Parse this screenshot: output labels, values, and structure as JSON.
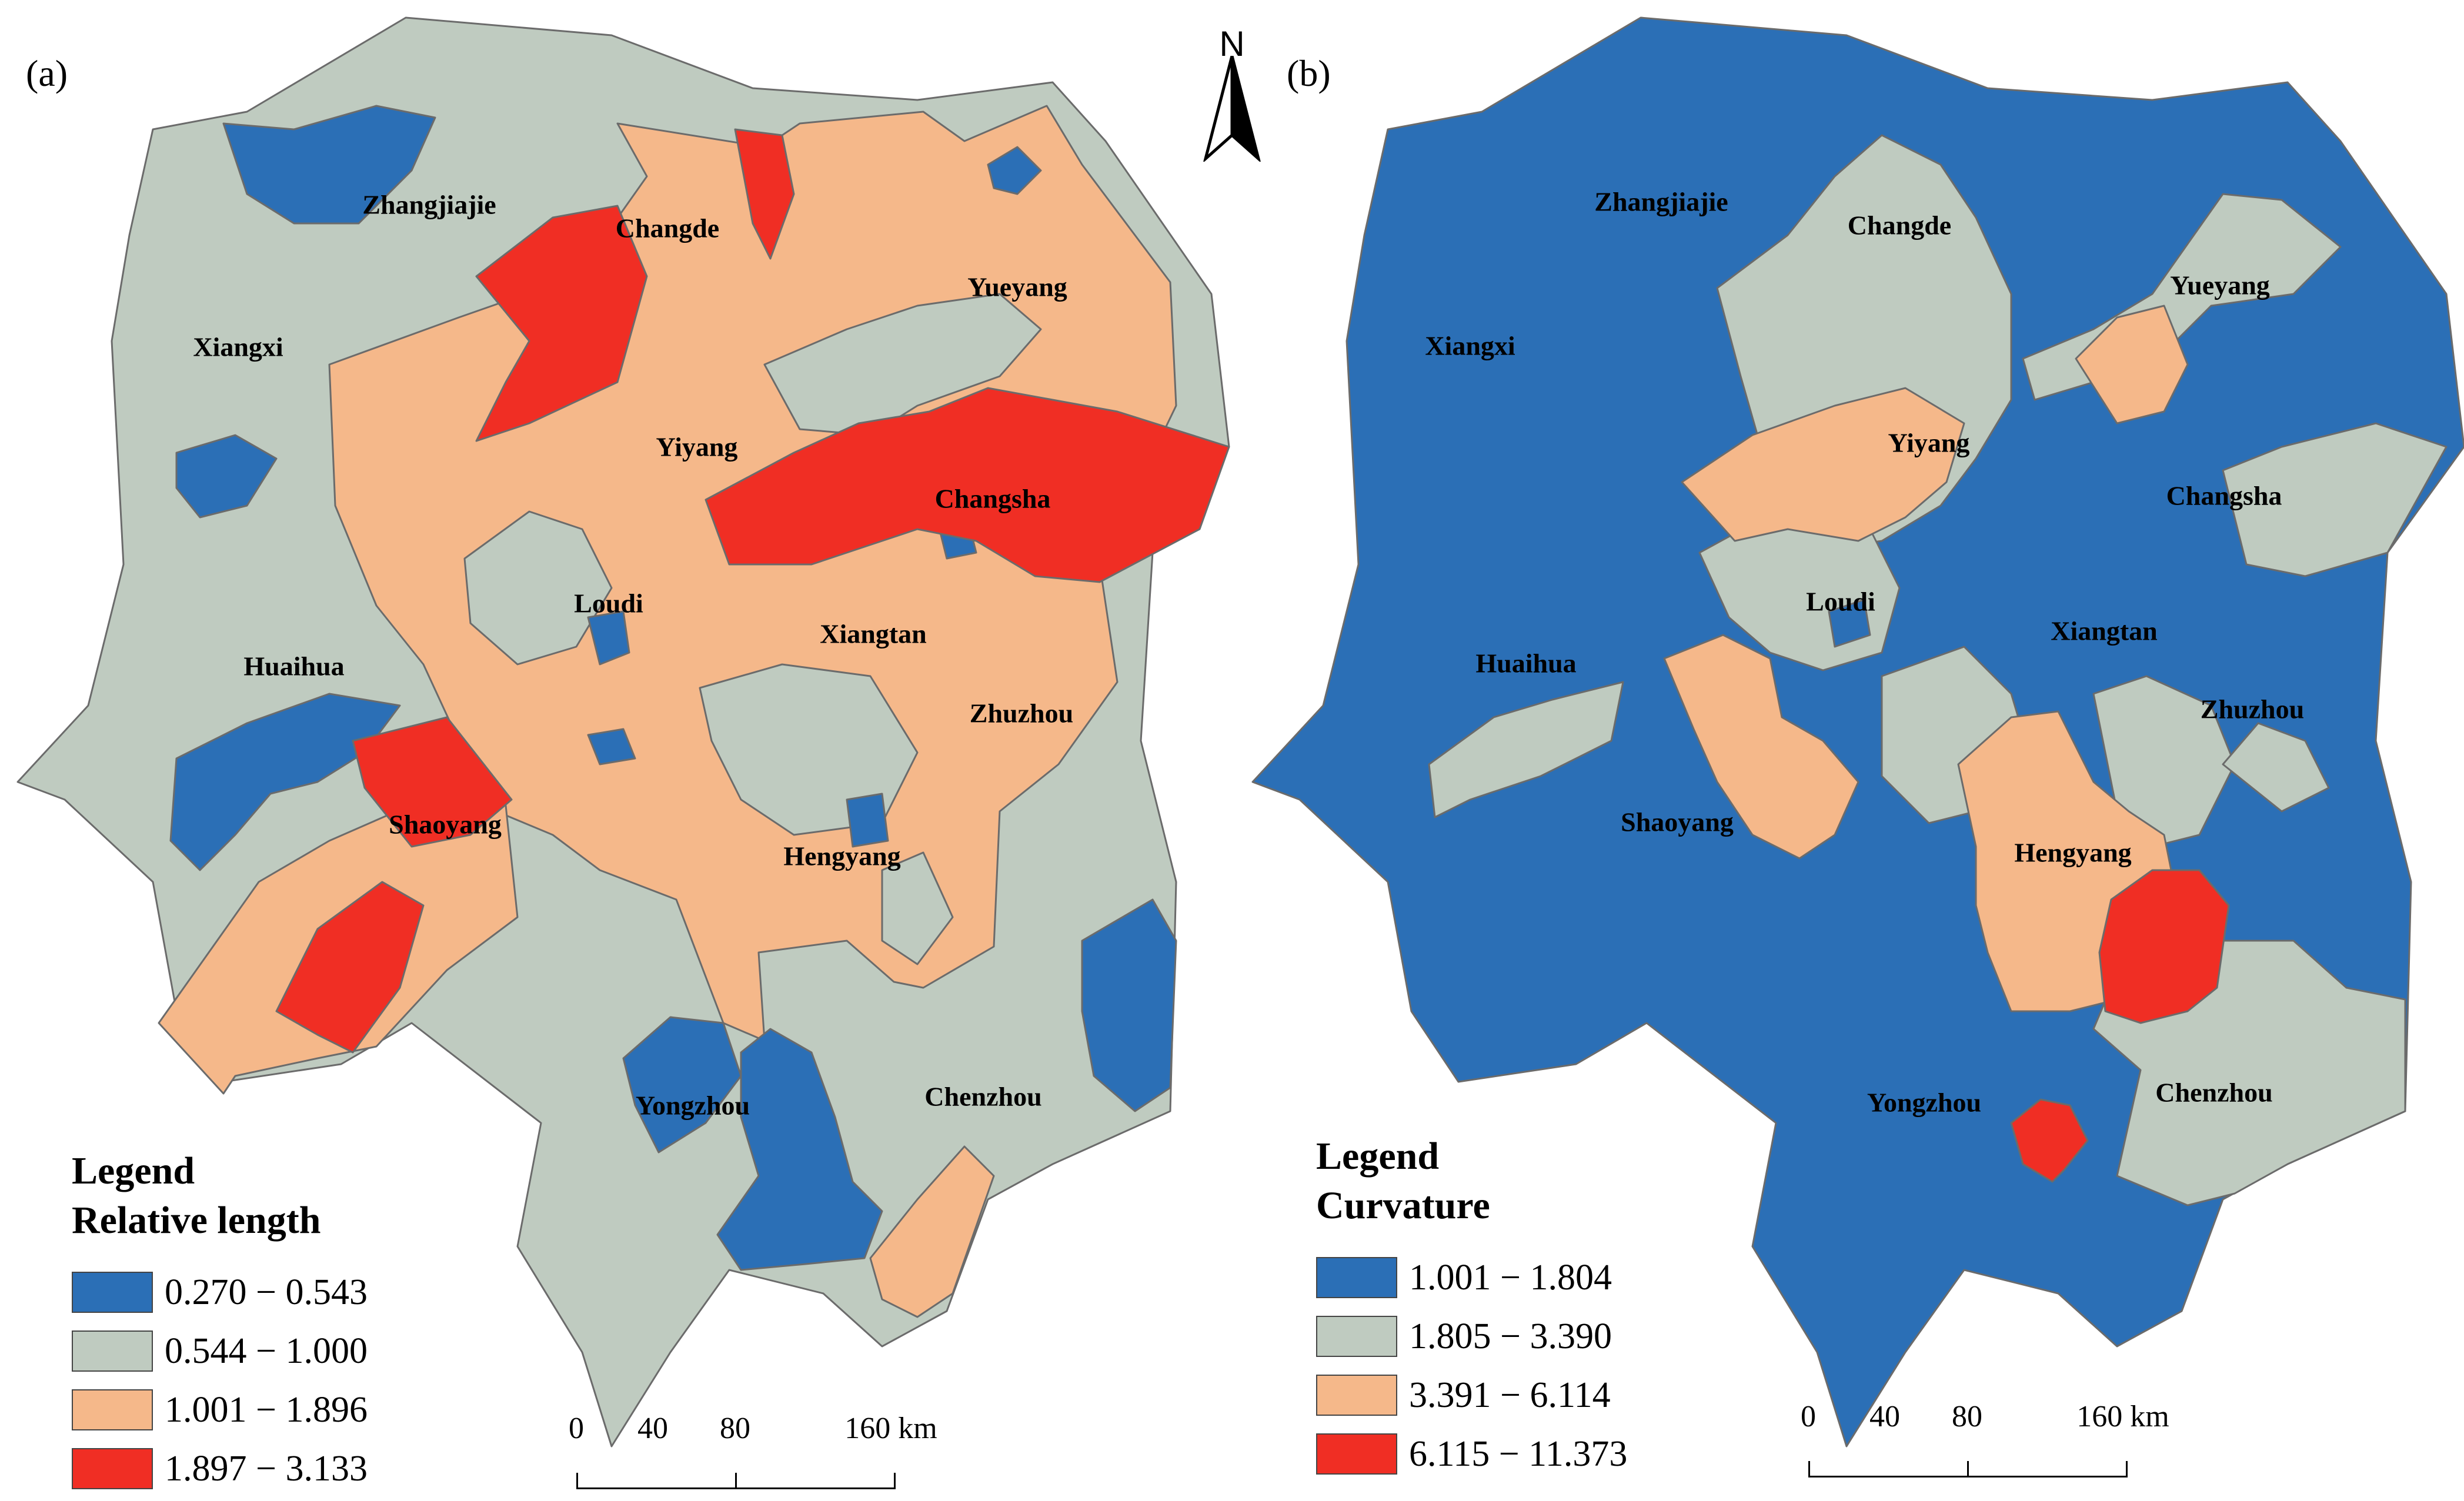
{
  "panels": {
    "a": {
      "label": "(a)",
      "legend": {
        "heading": "Legend",
        "title": "Relative length",
        "classes": [
          {
            "range": "0.270 − 0.543",
            "color": "#2b6fb6"
          },
          {
            "range": "0.544 − 1.000",
            "color": "#bfcbc0"
          },
          {
            "range": "1.001 − 1.896",
            "color": "#f5b88a"
          },
          {
            "range": "1.897 − 3.133",
            "color": "#f02e24"
          }
        ]
      },
      "cities": [
        "Zhangjiajie",
        "Changde",
        "Yueyang",
        "Xiangxi",
        "Yiyang",
        "Changsha",
        "Loudi",
        "Xiangtan",
        "Huaihua",
        "Zhuzhou",
        "Shaoyang",
        "Hengyang",
        "Yongzhou",
        "Chenzhou"
      ]
    },
    "b": {
      "label": "(b)",
      "legend": {
        "heading": "Legend",
        "title": "Curvature",
        "classes": [
          {
            "range": "1.001 − 1.804",
            "color": "#2b6fb6"
          },
          {
            "range": "1.805 − 3.390",
            "color": "#bfcbc0"
          },
          {
            "range": "3.391 − 6.114",
            "color": "#f5b88a"
          },
          {
            "range": "6.115 − 11.373",
            "color": "#f02e24"
          }
        ]
      },
      "cities": [
        "Zhangjiajie",
        "Changde",
        "Yueyang",
        "Xiangxi",
        "Yiyang",
        "Changsha",
        "Loudi",
        "Xiangtan",
        "Huaihua",
        "Zhuzhou",
        "Shaoyang",
        "Hengyang",
        "Yongzhou",
        "Chenzhou"
      ]
    }
  },
  "north_arrow": {
    "label": "N"
  },
  "scalebar": {
    "ticks": [
      "0",
      "40",
      "80",
      "160 km"
    ]
  }
}
